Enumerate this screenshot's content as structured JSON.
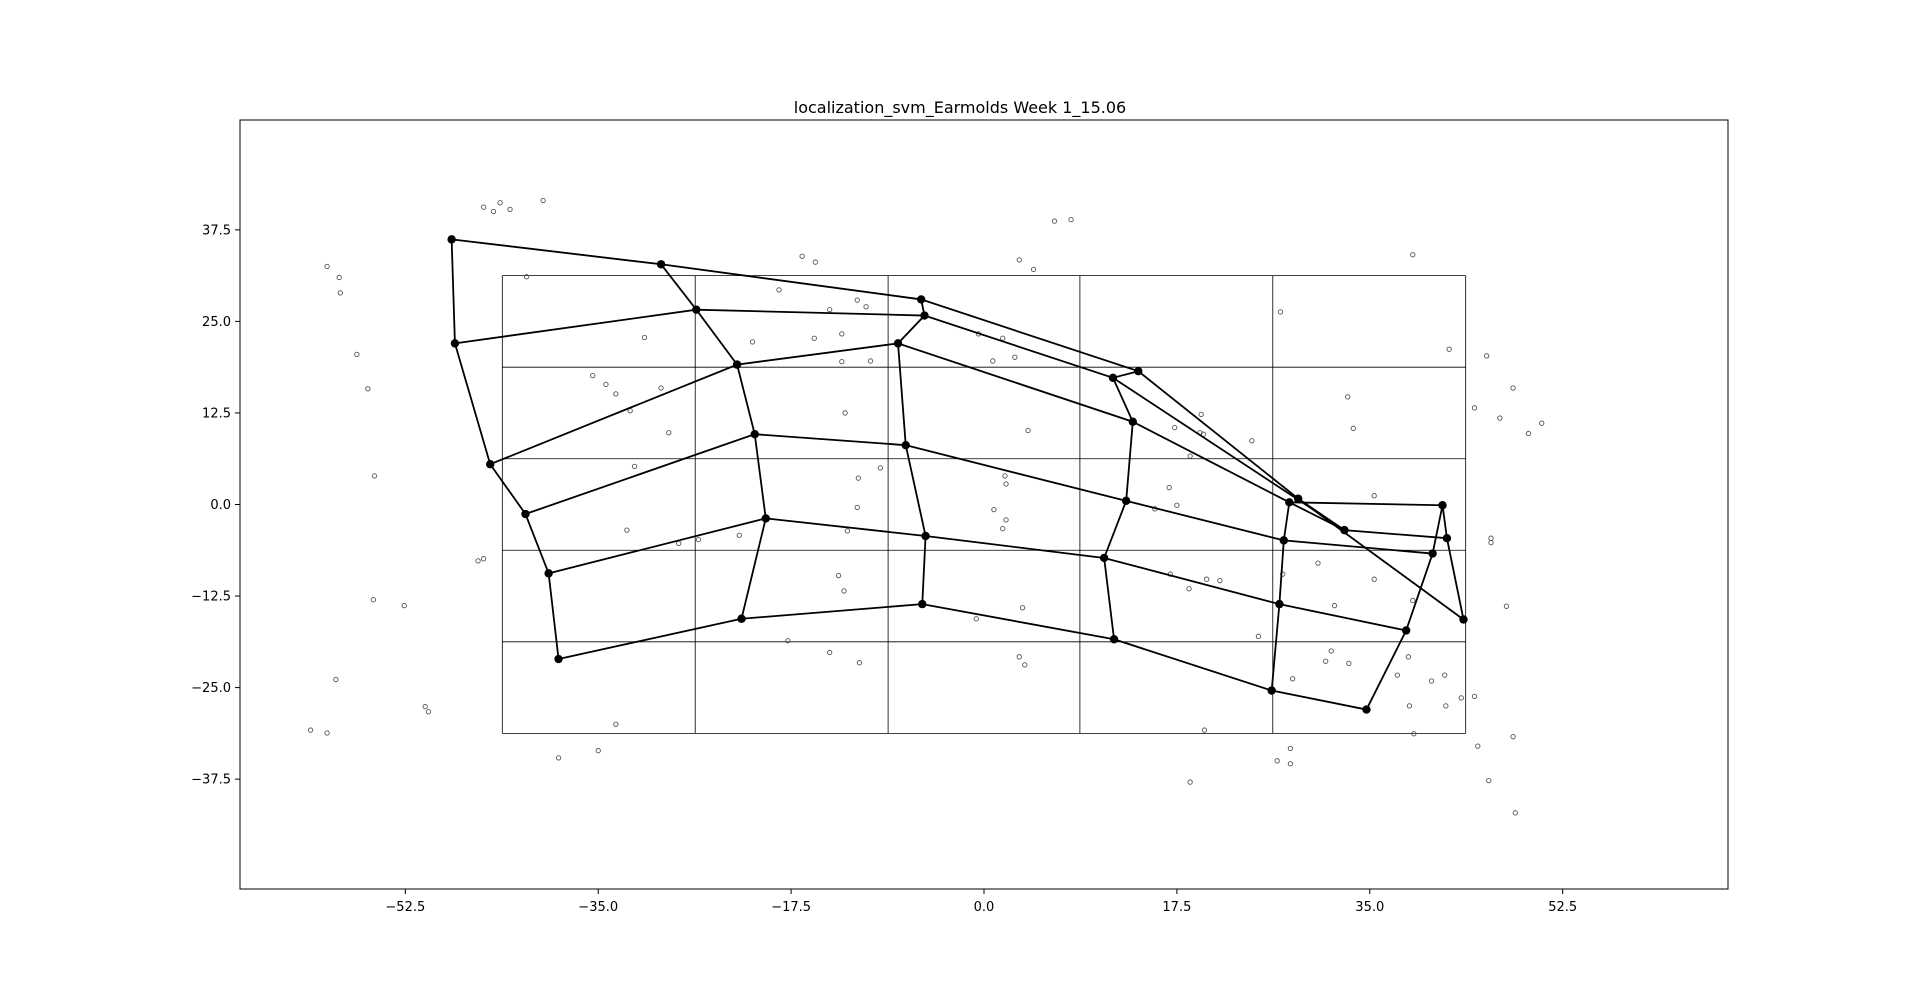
{
  "chart_data": {
    "type": "scatter",
    "title": "localization_svm_Earmolds Week 1_15.06",
    "xlabel": "",
    "ylabel": "",
    "xlim": [
      -67.5,
      67.5
    ],
    "ylim": [
      -52.5,
      52.5
    ],
    "xticks": [
      -52.5,
      -35.0,
      -17.5,
      0.0,
      17.5,
      35.0,
      52.5
    ],
    "xtick_labels": [
      "−52.5",
      "−35.0",
      "−17.5",
      "0.0",
      "17.5",
      "35.0",
      "52.5"
    ],
    "yticks": [
      37.5,
      25.0,
      12.5,
      0.0,
      -12.5,
      -25.0,
      -37.5
    ],
    "ytick_labels": [
      "37.5",
      "25.0",
      "12.5",
      "0.0",
      "−12.5",
      "−25.0",
      "−37.5"
    ],
    "colors": {
      "mesh": "#000000",
      "grid": "#000000",
      "scatter_edge": "#555555",
      "background": "#ffffff"
    },
    "reference_grid": {
      "x": [
        -43.7,
        -26.2,
        -8.7,
        8.7,
        26.2,
        43.7
      ],
      "y": [
        31.25,
        18.75,
        6.25,
        -6.25,
        -18.75,
        -31.25
      ]
    },
    "mesh": {
      "rows": [
        [
          [
            -48.3,
            36.2
          ],
          [
            -29.3,
            32.8
          ],
          [
            -5.7,
            28.0
          ],
          [
            14.0,
            18.2
          ],
          [
            28.5,
            0.8
          ],
          [
            43.5,
            -15.7
          ]
        ],
        [
          [
            -48.0,
            22.0
          ],
          [
            -26.1,
            26.6
          ],
          [
            -5.4,
            25.8
          ],
          [
            11.7,
            17.3
          ],
          [
            32.7,
            -3.5
          ],
          [
            42.0,
            -4.6
          ]
        ],
        [
          [
            -44.8,
            5.5
          ],
          [
            -22.4,
            19.1
          ],
          [
            -7.8,
            22.0
          ],
          [
            13.5,
            11.3
          ],
          [
            27.7,
            0.3
          ],
          [
            41.6,
            -0.1
          ]
        ],
        [
          [
            -41.6,
            -1.3
          ],
          [
            -20.8,
            9.6
          ],
          [
            -7.1,
            8.1
          ],
          [
            12.9,
            0.5
          ],
          [
            27.2,
            -4.9
          ],
          [
            40.7,
            -6.7
          ]
        ],
        [
          [
            -39.5,
            -9.4
          ],
          [
            -19.8,
            -1.9
          ],
          [
            -5.3,
            -4.3
          ],
          [
            10.9,
            -7.3
          ],
          [
            26.8,
            -13.6
          ],
          [
            38.3,
            -17.2
          ]
        ],
        [
          [
            -38.6,
            -21.1
          ],
          [
            -22.0,
            -15.6
          ],
          [
            -5.6,
            -13.6
          ],
          [
            11.8,
            -18.4
          ],
          [
            26.1,
            -25.4
          ],
          [
            34.7,
            -28.0
          ]
        ]
      ]
    },
    "scatter": [
      [
        -45.4,
        40.6
      ],
      [
        -44.5,
        40.0
      ],
      [
        -43.9,
        41.2
      ],
      [
        -43.0,
        40.3
      ],
      [
        -40.0,
        41.5
      ],
      [
        -59.6,
        32.5
      ],
      [
        -58.5,
        31.0
      ],
      [
        -58.4,
        28.9
      ],
      [
        -56.9,
        20.5
      ],
      [
        -55.9,
        15.8
      ],
      [
        -55.3,
        3.9
      ],
      [
        -55.4,
        -13.0
      ],
      [
        -52.6,
        -13.8
      ],
      [
        -58.8,
        -23.9
      ],
      [
        -61.1,
        -30.8
      ],
      [
        -59.6,
        -31.2
      ],
      [
        -50.7,
        -27.6
      ],
      [
        -50.4,
        -28.3
      ],
      [
        -45.4,
        -7.4
      ],
      [
        -45.9,
        -7.7
      ],
      [
        -41.5,
        31.1
      ],
      [
        -35.5,
        17.6
      ],
      [
        -34.3,
        16.4
      ],
      [
        -33.4,
        15.1
      ],
      [
        -30.8,
        22.8
      ],
      [
        -32.1,
        12.8
      ],
      [
        -29.3,
        15.9
      ],
      [
        -28.6,
        9.8
      ],
      [
        -31.7,
        5.2
      ],
      [
        -32.4,
        -3.5
      ],
      [
        -27.7,
        -5.3
      ],
      [
        -25.9,
        -4.8
      ],
      [
        -22.2,
        -4.2
      ],
      [
        -21.0,
        22.2
      ],
      [
        -18.6,
        29.3
      ],
      [
        -16.5,
        33.9
      ],
      [
        -15.3,
        33.1
      ],
      [
        -15.4,
        22.7
      ],
      [
        -14.0,
        26.6
      ],
      [
        -12.9,
        23.3
      ],
      [
        -12.9,
        19.5
      ],
      [
        -12.6,
        12.5
      ],
      [
        -11.5,
        27.9
      ],
      [
        -10.7,
        27.0
      ],
      [
        -10.3,
        19.6
      ],
      [
        -9.4,
        5.0
      ],
      [
        -11.4,
        3.6
      ],
      [
        -11.5,
        -0.4
      ],
      [
        -12.4,
        -3.6
      ],
      [
        -13.2,
        -9.7
      ],
      [
        -12.7,
        -11.8
      ],
      [
        -14.0,
        -20.2
      ],
      [
        -11.3,
        -21.6
      ],
      [
        -17.8,
        -18.6
      ],
      [
        -35.0,
        -33.6
      ],
      [
        -33.4,
        -30.0
      ],
      [
        -38.6,
        -34.6
      ],
      [
        -0.5,
        23.3
      ],
      [
        1.7,
        22.7
      ],
      [
        0.8,
        19.6
      ],
      [
        2.8,
        20.1
      ],
      [
        3.2,
        33.4
      ],
      [
        4.5,
        32.1
      ],
      [
        6.4,
        38.7
      ],
      [
        7.9,
        38.9
      ],
      [
        4.0,
        10.1
      ],
      [
        1.9,
        3.9
      ],
      [
        2.0,
        2.8
      ],
      [
        0.9,
        -0.7
      ],
      [
        2.0,
        -2.1
      ],
      [
        1.7,
        -3.3
      ],
      [
        -0.7,
        -15.6
      ],
      [
        3.5,
        -14.1
      ],
      [
        3.2,
        -20.8
      ],
      [
        3.7,
        -21.9
      ],
      [
        16.8,
        2.3
      ],
      [
        17.3,
        10.5
      ],
      [
        18.7,
        6.6
      ],
      [
        19.7,
        12.3
      ],
      [
        19.6,
        9.8
      ],
      [
        19.9,
        9.6
      ],
      [
        17.5,
        -0.1
      ],
      [
        15.5,
        -0.6
      ],
      [
        16.9,
        -9.5
      ],
      [
        18.6,
        -11.5
      ],
      [
        20.2,
        -10.2
      ],
      [
        21.4,
        -10.4
      ],
      [
        24.3,
        8.7
      ],
      [
        24.9,
        -18.0
      ],
      [
        26.9,
        26.3
      ],
      [
        27.1,
        -9.5
      ],
      [
        28.0,
        -23.8
      ],
      [
        30.3,
        -8.0
      ],
      [
        31.0,
        -21.4
      ],
      [
        31.8,
        -13.8
      ],
      [
        31.5,
        -20.0
      ],
      [
        33.1,
        -21.7
      ],
      [
        33.0,
        14.7
      ],
      [
        33.5,
        10.4
      ],
      [
        35.4,
        1.2
      ],
      [
        35.4,
        -10.2
      ],
      [
        38.9,
        34.1
      ],
      [
        38.9,
        -13.1
      ],
      [
        38.5,
        -20.8
      ],
      [
        37.5,
        -23.3
      ],
      [
        38.6,
        -27.5
      ],
      [
        40.6,
        -24.1
      ],
      [
        41.8,
        -23.3
      ],
      [
        41.9,
        -27.5
      ],
      [
        39.0,
        -31.3
      ],
      [
        42.2,
        21.2
      ],
      [
        44.5,
        13.2
      ],
      [
        45.6,
        20.3
      ],
      [
        46.8,
        11.8
      ],
      [
        46.0,
        -4.6
      ],
      [
        46.0,
        -5.2
      ],
      [
        47.4,
        -13.9
      ],
      [
        48.0,
        15.9
      ],
      [
        49.4,
        9.7
      ],
      [
        50.6,
        11.1
      ],
      [
        43.3,
        -26.4
      ],
      [
        44.5,
        -26.2
      ],
      [
        44.8,
        -33.0
      ],
      [
        45.8,
        -37.7
      ],
      [
        48.0,
        -31.7
      ],
      [
        48.2,
        -42.1
      ],
      [
        27.8,
        -33.3
      ],
      [
        27.8,
        -35.4
      ],
      [
        26.6,
        -35.0
      ],
      [
        20.0,
        -30.8
      ],
      [
        18.7,
        -37.9
      ]
    ]
  }
}
